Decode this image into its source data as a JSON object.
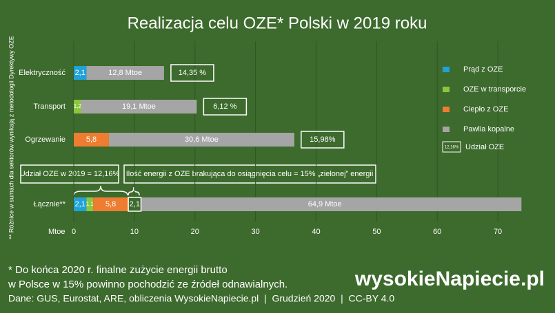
{
  "chart_data": {
    "type": "bar",
    "orientation": "horizontal",
    "stacked": true,
    "title": "Realizacja celu OZE* Polski w 2019 roku",
    "x_label": "Mtoe",
    "categories": [
      "Elektryczność",
      "Transport",
      "Ogrzewanie",
      "Łącznie**"
    ],
    "series": [
      {
        "name": "Prąd z OZE",
        "color": "#1fa2d6",
        "values": [
          2.1,
          null,
          null,
          2.1
        ],
        "value_labels": [
          "2,1",
          null,
          null,
          "2,1"
        ]
      },
      {
        "name": "OZE w transporcie",
        "color": "#8cc63e",
        "values": [
          null,
          1.2,
          null,
          1.1
        ],
        "value_labels": [
          null,
          "1,2",
          null,
          "1,1"
        ]
      },
      {
        "name": "Ciepło z OZE",
        "color": "#ee7d31",
        "values": [
          null,
          null,
          5.8,
          5.8
        ],
        "value_labels": [
          null,
          null,
          "5,8",
          "5,8"
        ]
      },
      {
        "name": "Pawlia kopalne",
        "color": "#a5a5a5",
        "values": [
          12.8,
          19.1,
          30.6,
          64.9
        ],
        "value_labels": [
          "12,8 Mtoe",
          "19,1 Mtoe",
          "30,6 Mtoe",
          "64,9 Mtoe"
        ]
      }
    ],
    "target_gap": {
      "values": [
        null,
        null,
        null,
        2.1
      ],
      "value_labels": [
        null,
        null,
        null,
        "2,1"
      ]
    },
    "share": {
      "name": "Udział OZE",
      "legend_sample": "12,16%",
      "values": [
        14.35,
        6.12,
        15.98,
        null
      ],
      "value_labels": [
        "14,35 %",
        "6,12 %",
        "15,98%",
        null
      ]
    },
    "annotations": [
      "Udział OZE w 2019 = 12,16%",
      "Ilość energii z OZE brakująca do osiągnięcia celu = 15% „zielonej” energii"
    ],
    "side_note": "** Różnice w sumach dla sektorów wynikają z metodologii Dyrektywy OZE",
    "xlim": [
      0,
      75
    ],
    "xticks": [
      0,
      10,
      20,
      30,
      40,
      50,
      60,
      70
    ],
    "grid": true
  },
  "footer": {
    "lines": [
      "* Do końca 2020 r. finalne zużycie energii brutto",
      "w Polsce w 15% powinno pochodzić ze źródeł odnawialnych.",
      "Dane: GUS, Eurostat, ARE, obliczenia WysokieNapiecie.pl  |  Grudzień 2020  |  CC-BY 4.0"
    ],
    "logo": "wysokieNapiecie.pl"
  }
}
